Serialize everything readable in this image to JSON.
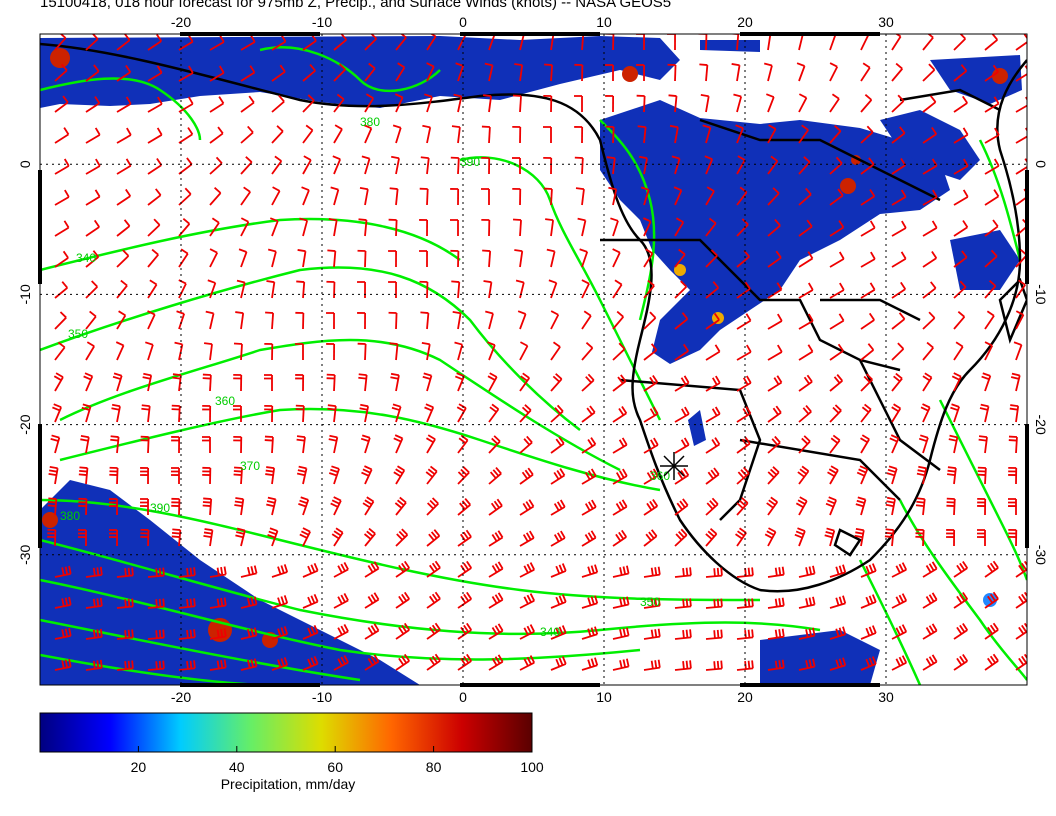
{
  "title": "15100418, 018 hour forecast for 975mb Z, Precip., and Surface Winds (knots) -- NASA GEOS5",
  "map": {
    "lon_range": [
      -30,
      40
    ],
    "lat_range": [
      -40,
      10
    ],
    "top_ticks": [
      "-20",
      "-10",
      "0",
      "10",
      "20",
      "30"
    ],
    "bottom_ticks": [
      "-20",
      "-10",
      "0",
      "10",
      "20",
      "30"
    ],
    "left_ticks": [
      "0",
      "-10",
      "-20",
      "-30"
    ],
    "right_ticks": [
      "0",
      "-10",
      "-20",
      "-30"
    ],
    "contour_labels": [
      "340",
      "350",
      "360",
      "370",
      "380",
      "390",
      "340",
      "350",
      "360",
      "380",
      "390"
    ],
    "colors": {
      "contour": "#00ee00",
      "barb": "#ee0000",
      "coast": "#000000",
      "grid": "#000000"
    }
  },
  "colorbar": {
    "label": "Precipitation, mm/day",
    "ticks": [
      "20",
      "40",
      "60",
      "80",
      "100"
    ],
    "tick_values": [
      20,
      40,
      60,
      80,
      100
    ],
    "range": [
      0,
      100
    ],
    "stops": [
      "#000080",
      "#0000ff",
      "#00ccff",
      "#66ee66",
      "#dddd00",
      "#ff6600",
      "#cc0000",
      "#5a0000"
    ]
  }
}
